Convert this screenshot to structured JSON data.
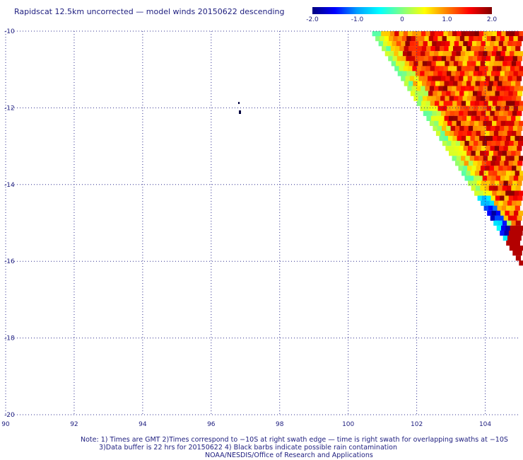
{
  "title": "Rapidscat 12.5km uncorrected — model winds 20150622 descending",
  "colorbar": {
    "labels": [
      "-2.0",
      "-1.0",
      "0",
      "1.0",
      "2.0"
    ],
    "min": -2.0,
    "max": 2.0,
    "colors": [
      "#000080",
      "#0000ff",
      "#00a0ff",
      "#00ffff",
      "#80ff80",
      "#ffff00",
      "#ff8000",
      "#ff0000",
      "#800000"
    ]
  },
  "axes": {
    "x_ticks": [
      "90",
      "92",
      "94",
      "96",
      "98",
      "100",
      "102",
      "104"
    ],
    "y_ticks": [
      "-10",
      "-12",
      "-14",
      "-16",
      "-18",
      "-20"
    ],
    "lon_range": [
      90,
      105
    ],
    "lat_range": [
      -20,
      -10
    ],
    "grid": true
  },
  "notes": [
    "Note: 1) Times are GMT 2)Times correspond to −10S at right swath edge — time is right swath for overlapping swaths at −10S",
    "3)Data buffer is 22 hrs for 20150622 4) Black barbs indicate possible rain contamination",
    "NOAA/NESDIS/Office of Research and Applications"
  ],
  "swath": {
    "description_values_range": [
      -2.0,
      2.0
    ]
  }
}
